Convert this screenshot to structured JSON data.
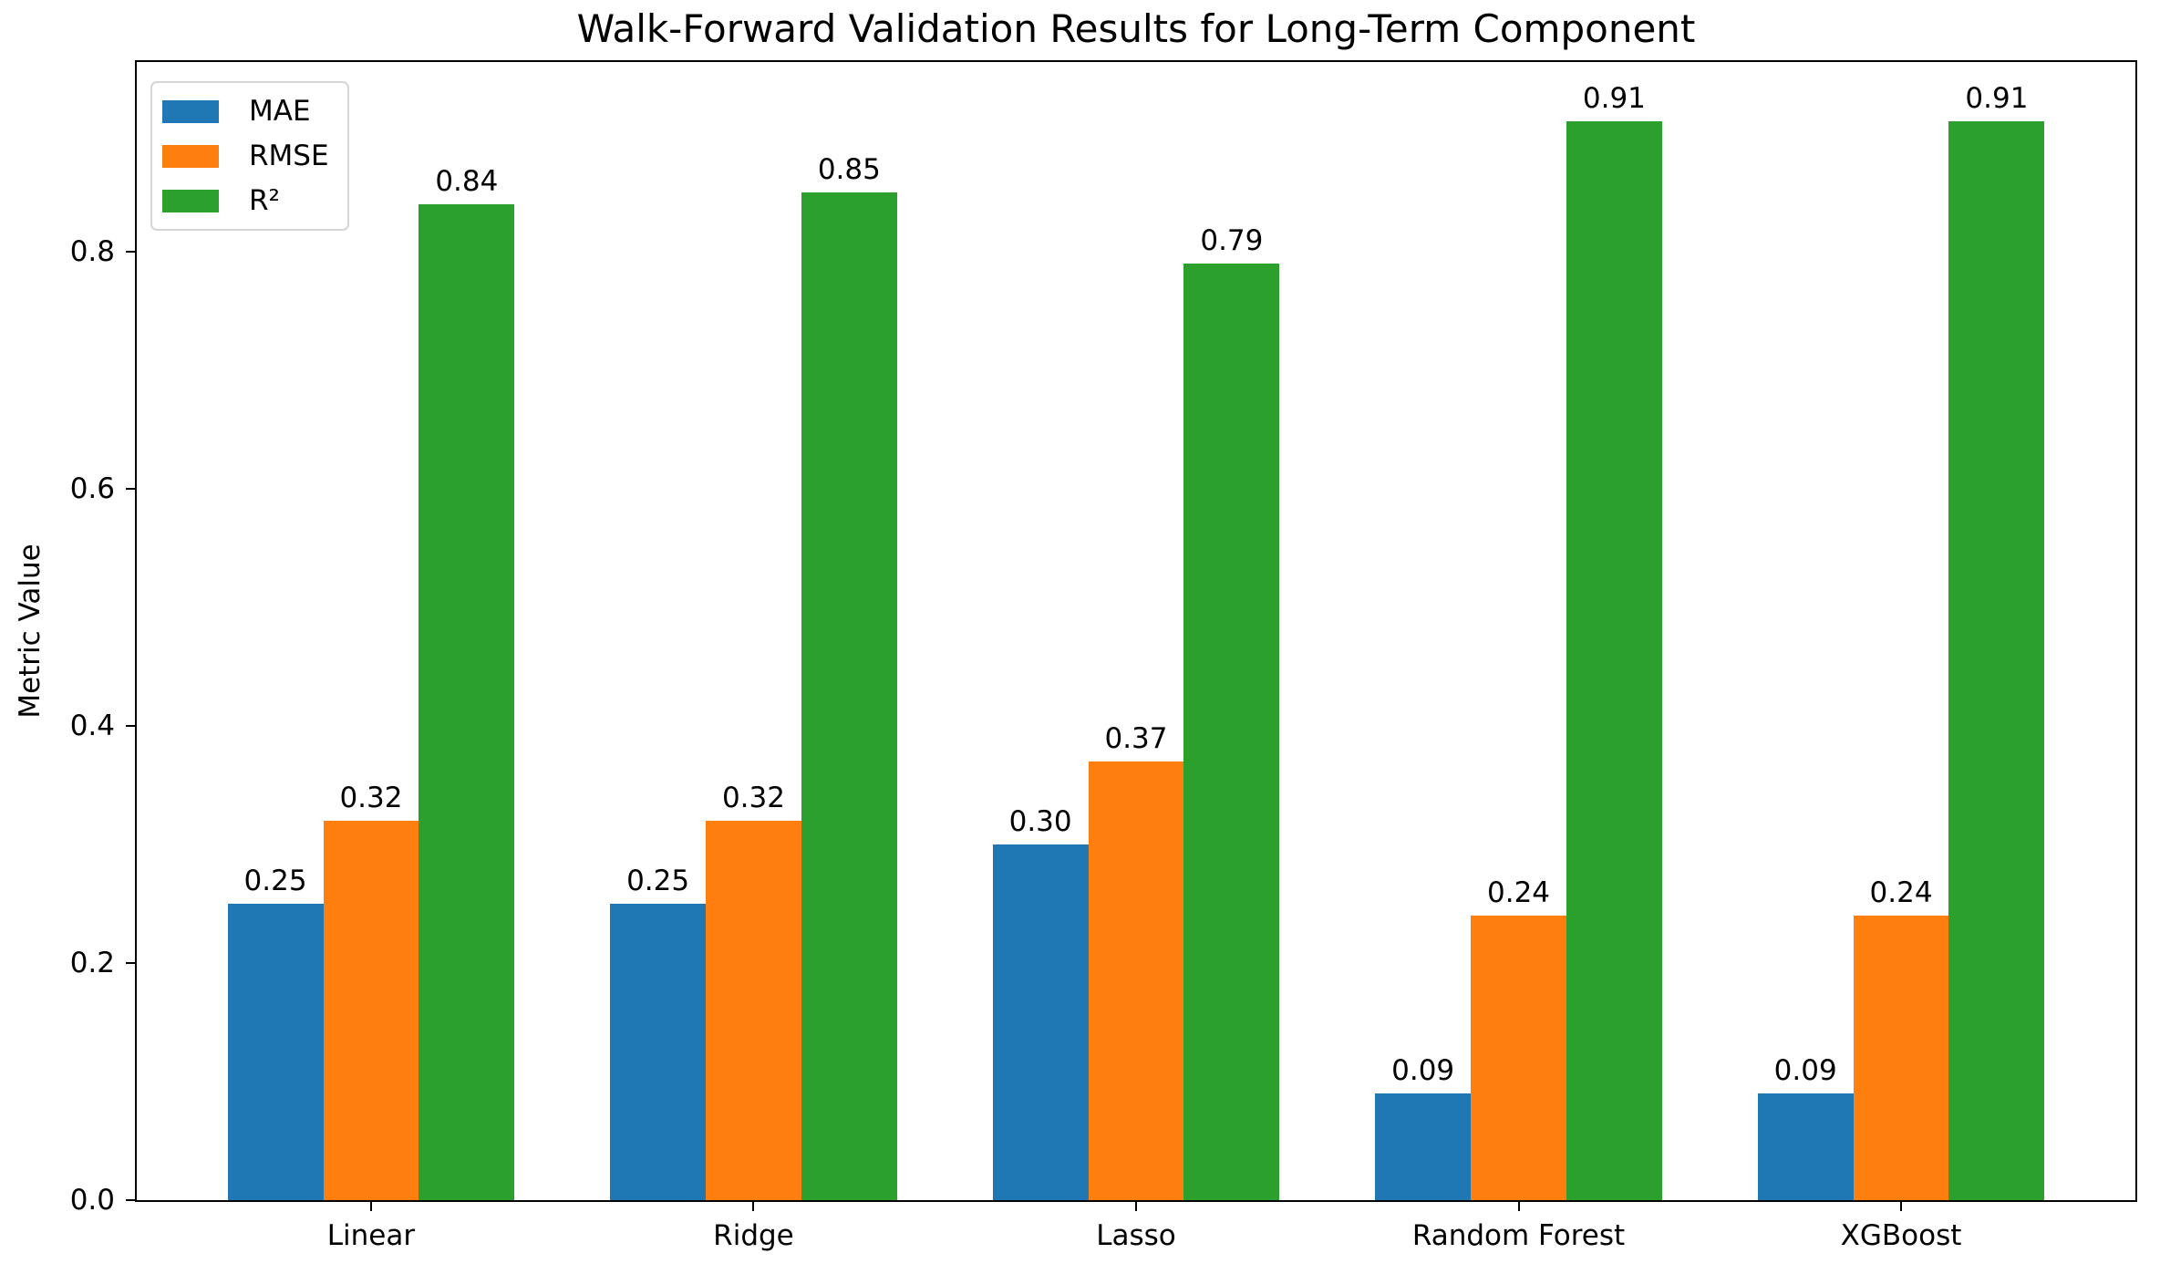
{
  "figure": {
    "background": "#ffffff",
    "axis_color": "#000000",
    "text_color": "#000000",
    "legend_border_color": "#d5d5d5"
  },
  "chart_data": {
    "type": "bar",
    "title": "Walk-Forward Validation Results for Long-Term Component",
    "xlabel": "",
    "ylabel": "Metric Value",
    "categories": [
      "Linear",
      "Ridge",
      "Lasso",
      "Random Forest",
      "XGBoost"
    ],
    "series": [
      {
        "name": "MAE",
        "color": "#1f77b4",
        "values": [
          0.25,
          0.25,
          0.3,
          0.09,
          0.09
        ],
        "labels": [
          "0.25",
          "0.25",
          "0.30",
          "0.09",
          "0.09"
        ]
      },
      {
        "name": "RMSE",
        "color": "#ff7f0e",
        "values": [
          0.32,
          0.32,
          0.37,
          0.24,
          0.24
        ],
        "labels": [
          "0.32",
          "0.32",
          "0.37",
          "0.24",
          "0.24"
        ]
      },
      {
        "name": "R²",
        "color": "#2ca02c",
        "values": [
          0.84,
          0.85,
          0.79,
          0.91,
          0.91
        ],
        "labels": [
          "0.84",
          "0.85",
          "0.79",
          "0.91",
          "0.91"
        ]
      }
    ],
    "yticks": [
      "0.0",
      "0.2",
      "0.4",
      "0.6",
      "0.8"
    ],
    "ylim": [
      0,
      0.96
    ],
    "xlim_units": {
      "total": 5.225,
      "left_offset": 0.6125
    },
    "bar_width_fraction": 0.25,
    "legend_position": "upper left",
    "grid": false
  }
}
